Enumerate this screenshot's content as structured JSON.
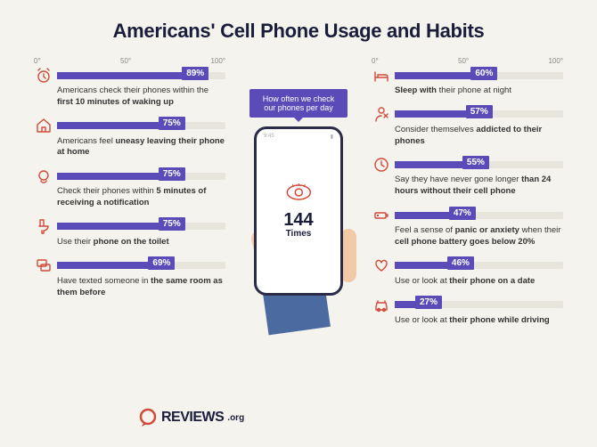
{
  "title": "Americans' Cell Phone Usage and Habits",
  "colors": {
    "background": "#f5f3ed",
    "bar_fill": "#5a4bb8",
    "bar_track": "#e8e5dd",
    "icon_stroke": "#d14a3a",
    "text_dark": "#1a1d3a",
    "text_body": "#333333",
    "scale_text": "#888888",
    "hand_sleeve": "#4a6aa0",
    "hand_skin": "#f4c9a8",
    "phone_border": "#2b2c47"
  },
  "scale": {
    "ticks": [
      "0°",
      "50°",
      "100°"
    ]
  },
  "center": {
    "callout": "How often we check our phones per day",
    "number": "144",
    "unit": "Times",
    "status_left": "9:45",
    "status_right": "▮"
  },
  "left_stats": [
    {
      "icon": "alarm",
      "pct": 89,
      "label": "89%",
      "caption_html": "Americans check their phones within the <b>first 10 minutes of waking up</b>"
    },
    {
      "icon": "home",
      "pct": 75,
      "label": "75%",
      "caption_html": "Americans feel <b>uneasy leaving their phone at home</b>"
    },
    {
      "icon": "bell",
      "pct": 75,
      "label": "75%",
      "caption_html": "Check their phones within <b>5 minutes of receiving a notification</b>"
    },
    {
      "icon": "toilet",
      "pct": 75,
      "label": "75%",
      "caption_html": "Use their <b>phone on the toilet</b>"
    },
    {
      "icon": "chat",
      "pct": 69,
      "label": "69%",
      "caption_html": "Have texted someone in <b>the same room as them before</b>"
    }
  ],
  "right_stats": [
    {
      "icon": "bed",
      "pct": 60,
      "label": "60%",
      "caption_html": "<b>Sleep with</b> their phone at night"
    },
    {
      "icon": "person",
      "pct": 57,
      "label": "57%",
      "caption_html": "Consider themselves <b>addicted to their phones</b>"
    },
    {
      "icon": "clock",
      "pct": 55,
      "label": "55%",
      "caption_html": "Say they have never gone longer <b>than 24 hours without their cell phone</b>"
    },
    {
      "icon": "battery",
      "pct": 47,
      "label": "47%",
      "caption_html": "Feel a sense of <b>panic or anxiety</b> when their <b>cell phone battery goes below 20%</b>"
    },
    {
      "icon": "heart",
      "pct": 46,
      "label": "46%",
      "caption_html": "Use or look at <b>their phone on a date</b>"
    },
    {
      "icon": "car",
      "pct": 27,
      "label": "27%",
      "caption_html": "Use or look at <b>their phone while driving</b>"
    }
  ],
  "logo": {
    "brand": "REVIEWS",
    "suffix": ".org"
  }
}
